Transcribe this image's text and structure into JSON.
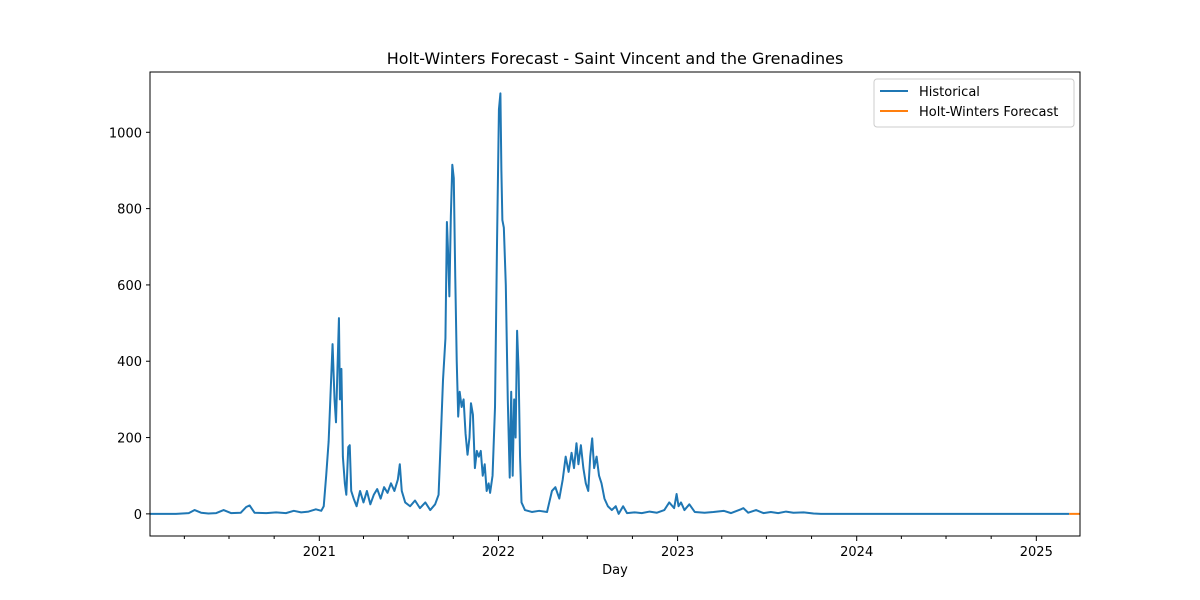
{
  "chart_data": {
    "type": "line",
    "title": "Holt-Winters Forecast - Saint Vincent and the Grenadines",
    "xlabel": "Day",
    "ylabel": "",
    "x_range": [
      "2020-01-22",
      "2025-03-31"
    ],
    "ylim": [
      -58,
      1158
    ],
    "yticks": [
      0,
      200,
      400,
      600,
      800,
      1000
    ],
    "xticks": [
      {
        "date": "2021-01-01",
        "label": "2021"
      },
      {
        "date": "2022-01-01",
        "label": "2022"
      },
      {
        "date": "2023-01-01",
        "label": "2023"
      },
      {
        "date": "2024-01-01",
        "label": "2024"
      },
      {
        "date": "2025-01-01",
        "label": "2025"
      }
    ],
    "grid": false,
    "legend_position": "top-right",
    "series": [
      {
        "name": "Historical",
        "color": "#1f77b4",
        "points": [
          [
            "2020-01-22",
            0
          ],
          [
            "2020-03-15",
            0
          ],
          [
            "2020-04-10",
            2
          ],
          [
            "2020-04-22",
            10
          ],
          [
            "2020-05-05",
            3
          ],
          [
            "2020-05-20",
            1
          ],
          [
            "2020-06-05",
            2
          ],
          [
            "2020-06-20",
            10
          ],
          [
            "2020-07-05",
            2
          ],
          [
            "2020-07-25",
            3
          ],
          [
            "2020-08-05",
            18
          ],
          [
            "2020-08-12",
            22
          ],
          [
            "2020-08-22",
            3
          ],
          [
            "2020-09-15",
            2
          ],
          [
            "2020-10-05",
            4
          ],
          [
            "2020-10-25",
            2
          ],
          [
            "2020-11-10",
            8
          ],
          [
            "2020-11-25",
            4
          ],
          [
            "2020-12-10",
            6
          ],
          [
            "2020-12-25",
            12
          ],
          [
            "2021-01-05",
            8
          ],
          [
            "2021-01-10",
            20
          ],
          [
            "2021-01-15",
            100
          ],
          [
            "2021-01-20",
            190
          ],
          [
            "2021-01-25",
            350
          ],
          [
            "2021-01-28",
            445
          ],
          [
            "2021-02-01",
            300
          ],
          [
            "2021-02-04",
            240
          ],
          [
            "2021-02-07",
            380
          ],
          [
            "2021-02-10",
            513
          ],
          [
            "2021-02-12",
            300
          ],
          [
            "2021-02-15",
            380
          ],
          [
            "2021-02-18",
            150
          ],
          [
            "2021-02-22",
            80
          ],
          [
            "2021-02-25",
            50
          ],
          [
            "2021-03-01",
            175
          ],
          [
            "2021-03-04",
            180
          ],
          [
            "2021-03-07",
            60
          ],
          [
            "2021-03-12",
            40
          ],
          [
            "2021-03-18",
            20
          ],
          [
            "2021-03-25",
            60
          ],
          [
            "2021-04-01",
            30
          ],
          [
            "2021-04-08",
            60
          ],
          [
            "2021-04-15",
            25
          ],
          [
            "2021-04-22",
            50
          ],
          [
            "2021-04-29",
            65
          ],
          [
            "2021-05-06",
            40
          ],
          [
            "2021-05-13",
            70
          ],
          [
            "2021-05-20",
            55
          ],
          [
            "2021-05-27",
            80
          ],
          [
            "2021-06-03",
            60
          ],
          [
            "2021-06-10",
            90
          ],
          [
            "2021-06-14",
            130
          ],
          [
            "2021-06-18",
            60
          ],
          [
            "2021-06-25",
            30
          ],
          [
            "2021-07-05",
            20
          ],
          [
            "2021-07-15",
            35
          ],
          [
            "2021-07-25",
            15
          ],
          [
            "2021-08-05",
            30
          ],
          [
            "2021-08-15",
            10
          ],
          [
            "2021-08-25",
            25
          ],
          [
            "2021-09-01",
            50
          ],
          [
            "2021-09-05",
            180
          ],
          [
            "2021-09-10",
            350
          ],
          [
            "2021-09-15",
            460
          ],
          [
            "2021-09-18",
            765
          ],
          [
            "2021-09-20",
            700
          ],
          [
            "2021-09-23",
            570
          ],
          [
            "2021-09-26",
            780
          ],
          [
            "2021-09-29",
            915
          ],
          [
            "2021-10-02",
            880
          ],
          [
            "2021-10-05",
            620
          ],
          [
            "2021-10-08",
            400
          ],
          [
            "2021-10-11",
            255
          ],
          [
            "2021-10-14",
            320
          ],
          [
            "2021-10-18",
            280
          ],
          [
            "2021-10-22",
            300
          ],
          [
            "2021-10-26",
            210
          ],
          [
            "2021-10-30",
            155
          ],
          [
            "2021-11-03",
            200
          ],
          [
            "2021-11-06",
            290
          ],
          [
            "2021-11-10",
            260
          ],
          [
            "2021-11-14",
            120
          ],
          [
            "2021-11-18",
            165
          ],
          [
            "2021-11-22",
            150
          ],
          [
            "2021-11-26",
            165
          ],
          [
            "2021-11-30",
            100
          ],
          [
            "2021-12-04",
            130
          ],
          [
            "2021-12-08",
            60
          ],
          [
            "2021-12-12",
            80
          ],
          [
            "2021-12-15",
            55
          ],
          [
            "2021-12-20",
            100
          ],
          [
            "2021-12-25",
            280
          ],
          [
            "2021-12-29",
            700
          ],
          [
            "2022-01-02",
            1060
          ],
          [
            "2022-01-05",
            1102
          ],
          [
            "2022-01-07",
            900
          ],
          [
            "2022-01-09",
            770
          ],
          [
            "2022-01-12",
            750
          ],
          [
            "2022-01-16",
            600
          ],
          [
            "2022-01-20",
            300
          ],
          [
            "2022-01-24",
            95
          ],
          [
            "2022-01-27",
            320
          ],
          [
            "2022-01-30",
            100
          ],
          [
            "2022-02-02",
            300
          ],
          [
            "2022-02-05",
            200
          ],
          [
            "2022-02-08",
            480
          ],
          [
            "2022-02-11",
            380
          ],
          [
            "2022-02-14",
            150
          ],
          [
            "2022-02-17",
            30
          ],
          [
            "2022-02-24",
            10
          ],
          [
            "2022-03-10",
            5
          ],
          [
            "2022-03-25",
            8
          ],
          [
            "2022-04-10",
            5
          ],
          [
            "2022-04-20",
            60
          ],
          [
            "2022-04-27",
            70
          ],
          [
            "2022-05-05",
            40
          ],
          [
            "2022-05-12",
            90
          ],
          [
            "2022-05-18",
            150
          ],
          [
            "2022-05-24",
            110
          ],
          [
            "2022-05-30",
            160
          ],
          [
            "2022-06-04",
            120
          ],
          [
            "2022-06-09",
            185
          ],
          [
            "2022-06-13",
            130
          ],
          [
            "2022-06-18",
            180
          ],
          [
            "2022-06-23",
            120
          ],
          [
            "2022-06-28",
            80
          ],
          [
            "2022-07-03",
            60
          ],
          [
            "2022-07-07",
            150
          ],
          [
            "2022-07-11",
            198
          ],
          [
            "2022-07-15",
            120
          ],
          [
            "2022-07-20",
            150
          ],
          [
            "2022-07-25",
            100
          ],
          [
            "2022-07-30",
            80
          ],
          [
            "2022-08-05",
            40
          ],
          [
            "2022-08-12",
            20
          ],
          [
            "2022-08-20",
            10
          ],
          [
            "2022-08-28",
            20
          ],
          [
            "2022-09-03",
            0
          ],
          [
            "2022-09-12",
            20
          ],
          [
            "2022-09-20",
            2
          ],
          [
            "2022-10-05",
            4
          ],
          [
            "2022-10-20",
            2
          ],
          [
            "2022-11-05",
            6
          ],
          [
            "2022-11-20",
            3
          ],
          [
            "2022-12-05",
            10
          ],
          [
            "2022-12-15",
            30
          ],
          [
            "2022-12-25",
            15
          ],
          [
            "2022-12-30",
            52
          ],
          [
            "2023-01-03",
            20
          ],
          [
            "2023-01-08",
            30
          ],
          [
            "2023-01-15",
            10
          ],
          [
            "2023-01-25",
            25
          ],
          [
            "2023-02-05",
            5
          ],
          [
            "2023-02-25",
            3
          ],
          [
            "2023-03-15",
            5
          ],
          [
            "2023-04-05",
            8
          ],
          [
            "2023-04-20",
            2
          ],
          [
            "2023-05-10",
            12
          ],
          [
            "2023-05-15",
            15
          ],
          [
            "2023-05-25",
            3
          ],
          [
            "2023-06-10",
            10
          ],
          [
            "2023-06-25",
            2
          ],
          [
            "2023-07-10",
            5
          ],
          [
            "2023-07-25",
            2
          ],
          [
            "2023-08-10",
            6
          ],
          [
            "2023-08-25",
            3
          ],
          [
            "2023-09-15",
            4
          ],
          [
            "2023-10-05",
            1
          ],
          [
            "2023-10-20",
            0
          ],
          [
            "2024-06-01",
            0
          ],
          [
            "2025-03-09",
            0
          ]
        ]
      },
      {
        "name": "Holt-Winters Forecast",
        "color": "#ff7f0e",
        "points": [
          [
            "2025-03-09",
            0
          ],
          [
            "2025-03-31",
            0
          ]
        ]
      }
    ]
  }
}
